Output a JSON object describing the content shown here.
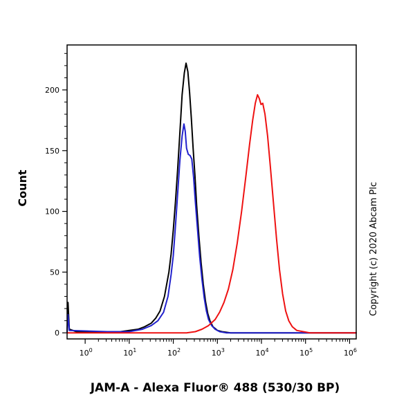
{
  "figure": {
    "copyright": "Copyright (c) 2020 Abcam Plc"
  },
  "chart_data": {
    "type": "line",
    "subtype": "flow-cytometry-histogram",
    "title": "JAM-A - Alexa Fluor® 488 (530/30 BP)",
    "xlabel": "",
    "ylabel": "Count",
    "x_scale": "log10",
    "x_units": "log10(fluorescence intensity)",
    "xlim_log": [
      -0.41,
      6.15
    ],
    "ylim": [
      -5,
      237
    ],
    "x_major_ticks_log": [
      0,
      1,
      2,
      3,
      4,
      5,
      6
    ],
    "y_major_ticks": [
      0,
      50,
      100,
      150,
      200
    ],
    "y_minor_tick_step": 10,
    "grid": false,
    "legend": "none",
    "frame": true,
    "series": [
      {
        "name": "black-curve",
        "color": "#000000",
        "peak": {
          "x_log": 2.29,
          "count": 222
        },
        "points": [
          [
            -0.41,
            0
          ],
          [
            -0.39,
            25
          ],
          [
            -0.36,
            3
          ],
          [
            -0.2,
            1
          ],
          [
            0.3,
            1
          ],
          [
            0.8,
            1
          ],
          [
            1.0,
            2
          ],
          [
            1.2,
            3
          ],
          [
            1.35,
            5
          ],
          [
            1.5,
            8
          ],
          [
            1.6,
            12
          ],
          [
            1.7,
            18
          ],
          [
            1.8,
            30
          ],
          [
            1.9,
            50
          ],
          [
            1.95,
            65
          ],
          [
            2.0,
            85
          ],
          [
            2.05,
            108
          ],
          [
            2.1,
            135
          ],
          [
            2.15,
            165
          ],
          [
            2.2,
            196
          ],
          [
            2.25,
            214
          ],
          [
            2.29,
            222
          ],
          [
            2.33,
            215
          ],
          [
            2.37,
            198
          ],
          [
            2.41,
            176
          ],
          [
            2.45,
            152
          ],
          [
            2.49,
            130
          ],
          [
            2.53,
            105
          ],
          [
            2.58,
            80
          ],
          [
            2.63,
            58
          ],
          [
            2.68,
            40
          ],
          [
            2.73,
            26
          ],
          [
            2.78,
            16
          ],
          [
            2.83,
            10
          ],
          [
            2.9,
            5
          ],
          [
            3.0,
            2
          ],
          [
            3.1,
            1
          ],
          [
            3.3,
            0
          ],
          [
            6.15,
            0
          ]
        ]
      },
      {
        "name": "blue-curve",
        "color": "#2121cc",
        "peak": {
          "x_log": 2.24,
          "count": 172
        },
        "points": [
          [
            -0.41,
            0
          ],
          [
            -0.39,
            15
          ],
          [
            -0.36,
            2
          ],
          [
            0.5,
            1
          ],
          [
            1.0,
            1
          ],
          [
            1.3,
            3
          ],
          [
            1.5,
            6
          ],
          [
            1.65,
            10
          ],
          [
            1.78,
            17
          ],
          [
            1.88,
            30
          ],
          [
            1.95,
            48
          ],
          [
            2.0,
            64
          ],
          [
            2.05,
            88
          ],
          [
            2.1,
            115
          ],
          [
            2.15,
            142
          ],
          [
            2.2,
            162
          ],
          [
            2.24,
            172
          ],
          [
            2.27,
            166
          ],
          [
            2.3,
            152
          ],
          [
            2.34,
            147
          ],
          [
            2.38,
            146
          ],
          [
            2.42,
            143
          ],
          [
            2.46,
            128
          ],
          [
            2.5,
            108
          ],
          [
            2.55,
            85
          ],
          [
            2.6,
            62
          ],
          [
            2.65,
            44
          ],
          [
            2.7,
            29
          ],
          [
            2.75,
            18
          ],
          [
            2.8,
            11
          ],
          [
            2.87,
            6
          ],
          [
            2.95,
            3
          ],
          [
            3.05,
            1
          ],
          [
            3.2,
            0
          ],
          [
            6.15,
            0
          ]
        ]
      },
      {
        "name": "red-curve",
        "color": "#ee1111",
        "peak": {
          "x_log": 3.91,
          "count": 196
        },
        "points": [
          [
            -0.41,
            0
          ],
          [
            2.3,
            0
          ],
          [
            2.5,
            1
          ],
          [
            2.65,
            3
          ],
          [
            2.8,
            6
          ],
          [
            2.95,
            11
          ],
          [
            3.05,
            17
          ],
          [
            3.15,
            25
          ],
          [
            3.25,
            36
          ],
          [
            3.35,
            52
          ],
          [
            3.45,
            74
          ],
          [
            3.55,
            100
          ],
          [
            3.65,
            130
          ],
          [
            3.73,
            155
          ],
          [
            3.8,
            175
          ],
          [
            3.86,
            189
          ],
          [
            3.91,
            196
          ],
          [
            3.95,
            193
          ],
          [
            3.99,
            188
          ],
          [
            4.03,
            189
          ],
          [
            4.08,
            180
          ],
          [
            4.14,
            162
          ],
          [
            4.2,
            138
          ],
          [
            4.27,
            108
          ],
          [
            4.34,
            78
          ],
          [
            4.41,
            52
          ],
          [
            4.48,
            32
          ],
          [
            4.55,
            18
          ],
          [
            4.62,
            10
          ],
          [
            4.7,
            5
          ],
          [
            4.8,
            2
          ],
          [
            4.95,
            1
          ],
          [
            5.1,
            0
          ],
          [
            6.15,
            0
          ]
        ]
      }
    ]
  }
}
